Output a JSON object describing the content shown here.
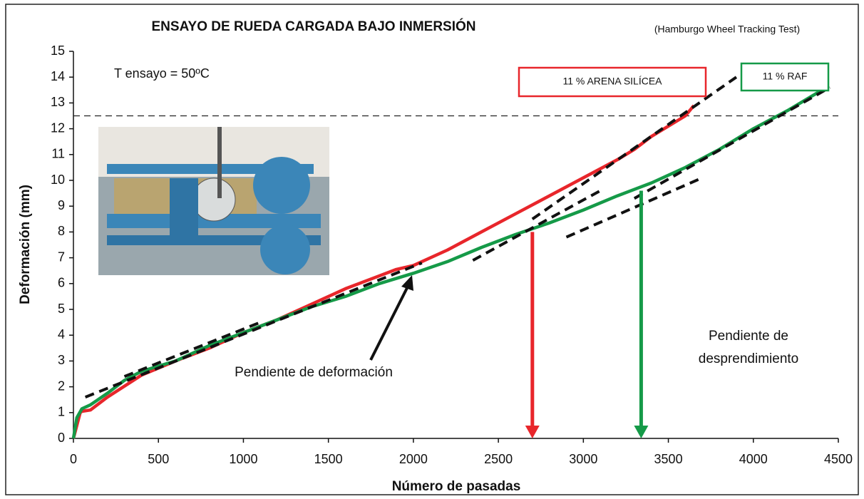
{
  "chart_data": {
    "type": "line",
    "title": "ENSAYO DE RUEDA CARGADA BAJO INMERSIÓN",
    "subtitle": "(Hamburgo Wheel Tracking Test)",
    "xlabel": "Número de pasadas",
    "ylabel": "Deformación (mm)",
    "xlim": [
      0,
      4500
    ],
    "ylim": [
      0,
      15
    ],
    "xticks": [
      0,
      500,
      1000,
      1500,
      2000,
      2500,
      3000,
      3500,
      4000,
      4500
    ],
    "yticks": [
      0,
      1,
      2,
      3,
      4,
      5,
      6,
      7,
      8,
      9,
      10,
      11,
      12,
      13,
      14,
      15
    ],
    "series": [
      {
        "name": "11 % ARENA SILÍCEA",
        "color": "#e8262b",
        "x": [
          0,
          20,
          40,
          50,
          100,
          200,
          400,
          600,
          800,
          1000,
          1200,
          1400,
          1600,
          1800,
          1900,
          2000,
          2200,
          2400,
          2600,
          2800,
          3000,
          3200,
          3300,
          3400,
          3500,
          3600,
          3650
        ],
        "values": [
          0,
          0.5,
          1.0,
          1.05,
          1.1,
          1.6,
          2.45,
          3.0,
          3.5,
          4.1,
          4.6,
          5.2,
          5.8,
          6.3,
          6.55,
          6.7,
          7.3,
          8.0,
          8.7,
          9.4,
          10.1,
          10.8,
          11.2,
          11.7,
          12.1,
          12.5,
          12.9
        ]
      },
      {
        "name": "11 % RAF",
        "color": "#159a48",
        "x": [
          0,
          20,
          50,
          100,
          200,
          300,
          400,
          600,
          800,
          1000,
          1200,
          1400,
          1600,
          1800,
          2000,
          2200,
          2400,
          2600,
          2800,
          3000,
          3200,
          3400,
          3600,
          3800,
          4000,
          4200,
          4430
        ],
        "values": [
          0,
          0.8,
          1.15,
          1.3,
          1.75,
          2.25,
          2.6,
          3.0,
          3.6,
          4.1,
          4.6,
          5.1,
          5.5,
          6.0,
          6.4,
          6.85,
          7.4,
          7.9,
          8.35,
          8.85,
          9.4,
          9.9,
          10.5,
          11.2,
          12.0,
          12.7,
          13.6
        ]
      }
    ],
    "trend_lines": [
      {
        "x": [
          70,
          2050
        ],
        "values": [
          1.6,
          6.8
        ]
      },
      {
        "x": [
          300,
          1100
        ],
        "values": [
          2.4,
          4.5
        ]
      },
      {
        "x": [
          2350,
          3100
        ],
        "values": [
          6.9,
          9.6
        ]
      },
      {
        "x": [
          2700,
          3900
        ],
        "values": [
          8.5,
          14.0
        ]
      },
      {
        "x": [
          2900,
          3700
        ],
        "values": [
          7.8,
          10.1
        ]
      },
      {
        "x": [
          3300,
          4450
        ],
        "values": [
          9.3,
          13.6
        ]
      }
    ],
    "reference_line": 12.5,
    "arrows": [
      {
        "x": 2700,
        "y": 8.0,
        "color": "#e8262b"
      },
      {
        "x": 3340,
        "y": 9.6,
        "color": "#159a48"
      }
    ],
    "annotations": [
      "T ensayo = 50ºC",
      "Pendiente de deformación",
      "Pendiente de",
      "desprendimiento"
    ]
  }
}
